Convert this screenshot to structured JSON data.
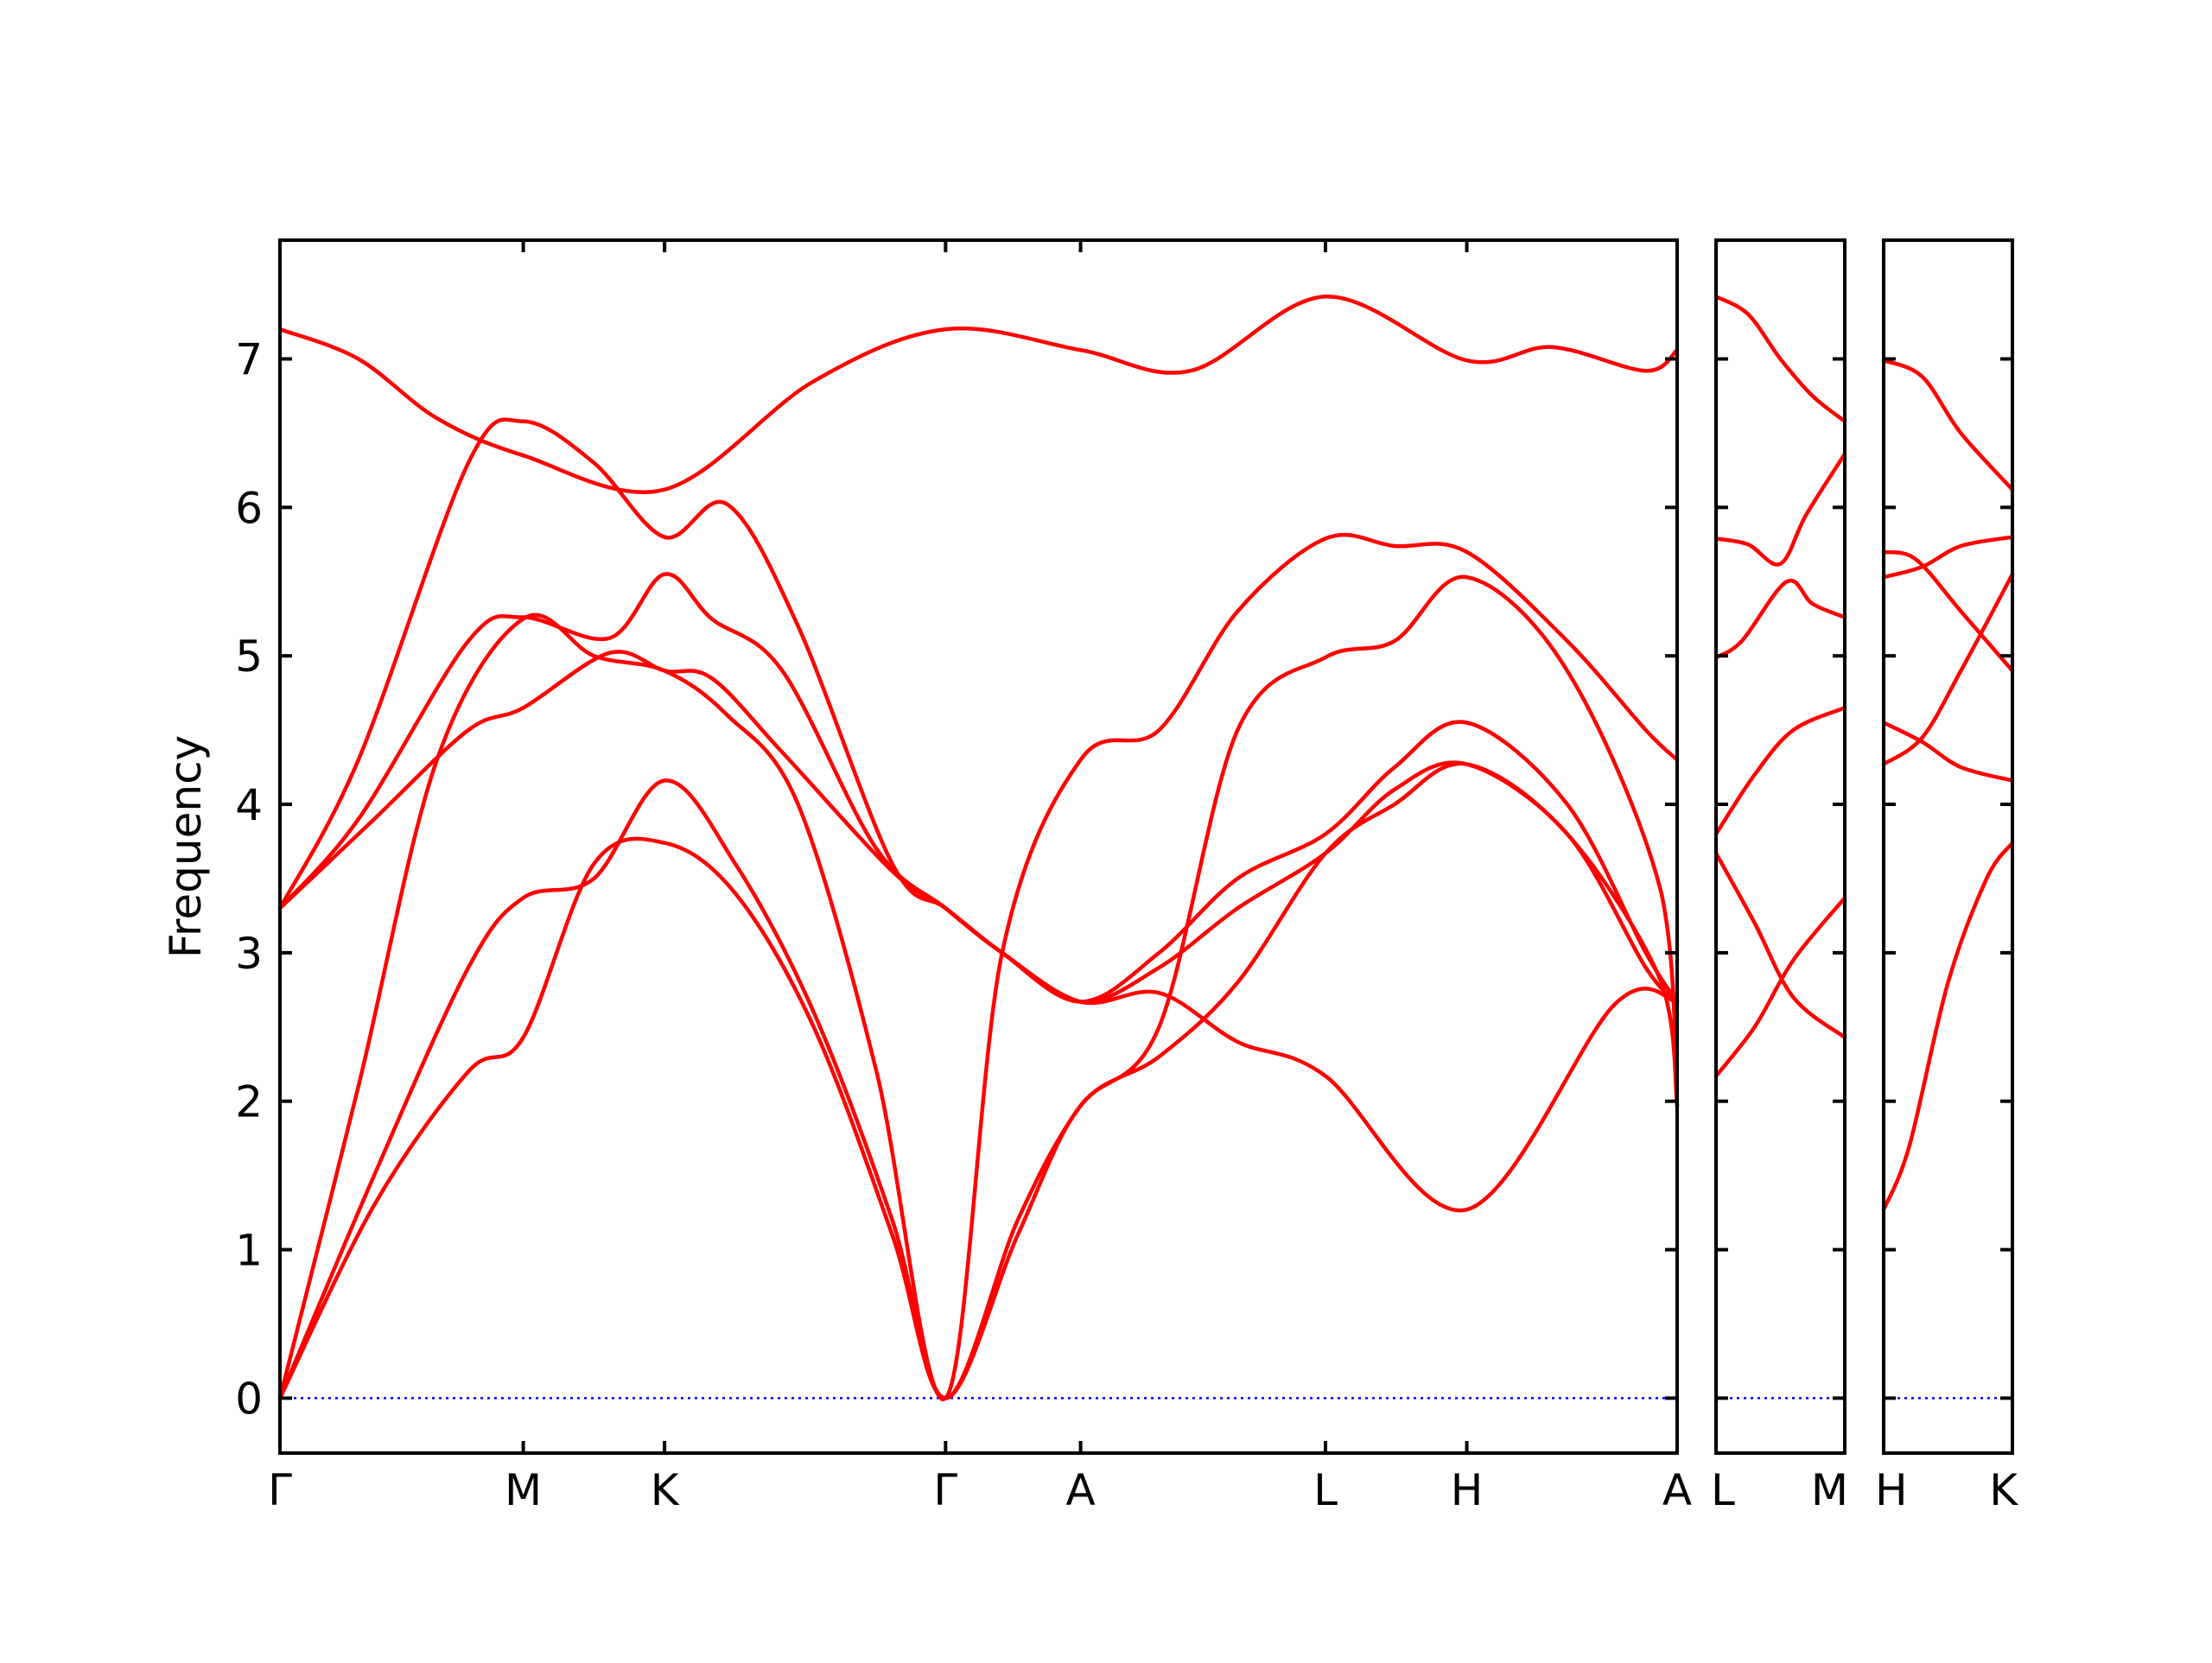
{
  "chart_data": {
    "type": "line",
    "ylabel": "Frequency",
    "xlabel": "",
    "ylim": [
      -0.37,
      7.8
    ],
    "yticks": [
      0,
      1,
      2,
      3,
      4,
      5,
      6,
      7
    ],
    "grid": false,
    "legend": "none",
    "colors": {
      "bands": "#ff0000",
      "zero_line": "#0000ff",
      "axes": "#000000"
    },
    "panels": [
      {
        "xlim": [
          0,
          8.9
        ],
        "points": [
          {
            "label": "Γ",
            "x": 0
          },
          {
            "label": "M",
            "x": 1.55
          },
          {
            "label": "K",
            "x": 2.45
          },
          {
            "label": "Γ",
            "x": 4.24
          },
          {
            "label": "A",
            "x": 5.1
          },
          {
            "label": "L",
            "x": 6.66
          },
          {
            "label": "H",
            "x": 7.56
          },
          {
            "label": "A",
            "x": 9.35
          }
        ],
        "bands": [
          {
            "x": [
              0,
              0.5,
              1.0,
              1.55,
              2.45,
              3.4,
              4.24,
              5.1,
              5.8,
              6.66,
              7.56,
              8.1,
              8.7,
              9.35
            ],
            "y": [
              7.2,
              7.0,
              6.6,
              6.35,
              6.12,
              6.85,
              7.2,
              7.06,
              6.92,
              7.42,
              6.99,
              7.08,
              6.92,
              7.06
            ]
          },
          {
            "x": [
              0,
              0.5,
              1.2,
              1.55,
              2.0,
              2.45,
              2.85,
              3.3,
              3.9,
              4.24,
              4.6,
              5.1,
              5.6,
              6.1,
              6.66,
              7.56,
              8.5,
              9.35
            ],
            "y": [
              3.3,
              4.3,
              6.3,
              6.58,
              6.3,
              5.8,
              6.02,
              5.2,
              3.6,
              3.3,
              3.0,
              2.67,
              2.73,
              2.4,
              2.17,
              1.27,
              2.65,
              2.67
            ]
          },
          {
            "x": [
              0,
              0.5,
              1.2,
              1.55,
              2.1,
              2.45,
              2.75,
              3.2,
              3.8,
              4.24,
              4.6,
              5.1,
              5.6,
              6.1,
              6.66,
              7.1,
              7.56,
              8.2,
              8.7,
              9.35
            ],
            "y": [
              3.3,
              3.9,
              5.1,
              5.26,
              5.12,
              5.55,
              5.25,
              4.9,
              3.7,
              3.3,
              3.0,
              2.67,
              3.0,
              3.5,
              3.8,
              4.25,
              4.55,
              4.0,
              3.0,
              2.67
            ]
          },
          {
            "x": [
              0,
              0.6,
              1.2,
              1.55,
              2.1,
              2.45,
              2.75,
              3.2,
              3.9,
              4.24,
              4.6,
              5.1,
              5.6,
              6.1,
              6.66,
              7.1,
              7.56,
              8.2,
              8.7,
              9.35
            ],
            "y": [
              3.3,
              3.9,
              4.5,
              4.65,
              5.02,
              4.9,
              4.85,
              4.35,
              3.55,
              3.3,
              3.0,
              2.67,
              2.9,
              3.3,
              3.67,
              4.1,
              4.27,
              3.8,
              2.9,
              2.67
            ]
          },
          {
            "x": [
              0,
              0.5,
              1.0,
              1.55,
              2.0,
              2.45,
              2.85,
              3.3,
              3.8,
              4.24,
              4.6,
              5.1,
              5.6,
              6.1,
              6.66,
              7.1,
              7.56,
              8.2,
              8.7,
              9.35
            ],
            "y": [
              0,
              2.1,
              4.3,
              5.25,
              5.0,
              4.9,
              4.6,
              4.0,
              2.2,
              0,
              3.0,
              4.3,
              4.5,
              5.3,
              5.79,
              5.74,
              5.7,
              5.1,
              4.5,
              4.3
            ]
          },
          {
            "x": [
              0,
              0.6,
              1.2,
              1.55,
              2.0,
              2.45,
              2.9,
              3.4,
              3.9,
              4.24,
              4.7,
              5.1,
              5.6,
              6.1,
              6.66,
              7.1,
              7.56,
              8.2,
              8.8,
              9.35
            ],
            "y": [
              0,
              1.5,
              2.9,
              3.37,
              3.5,
              4.16,
              3.6,
              2.6,
              1.2,
              0,
              1.2,
              1.97,
              2.5,
              4.5,
              4.99,
              5.1,
              5.53,
              4.9,
              3.4,
              1.97
            ]
          },
          {
            "x": [
              0,
              0.6,
              1.2,
              1.55,
              2.0,
              2.45,
              2.9,
              3.4,
              3.9,
              4.24,
              4.7,
              5.1,
              5.6,
              6.1,
              6.66,
              7.1,
              7.56,
              8.2,
              8.8,
              9.35
            ],
            "y": [
              0,
              1.3,
              2.2,
              2.43,
              3.6,
              3.74,
              3.4,
              2.5,
              1.1,
              0,
              1.1,
              1.97,
              2.3,
              2.8,
              3.67,
              4.0,
              4.27,
              3.8,
              2.8,
              1.97
            ]
          }
        ]
      },
      {
        "xlim": [
          0,
          1
        ],
        "points": [
          {
            "label": "L",
            "x": 0
          },
          {
            "label": "M",
            "x": 1
          }
        ],
        "bands": [
          {
            "x": [
              0,
              0.25,
              0.5,
              0.75,
              1
            ],
            "y": [
              7.42,
              7.3,
              7.0,
              6.75,
              6.58
            ]
          },
          {
            "x": [
              0,
              0.25,
              0.5,
              0.7,
              1
            ],
            "y": [
              5.79,
              5.75,
              5.62,
              5.95,
              6.36
            ]
          },
          {
            "x": [
              0,
              0.2,
              0.55,
              0.75,
              1
            ],
            "y": [
              4.99,
              5.1,
              5.5,
              5.35,
              5.26
            ]
          },
          {
            "x": [
              0,
              0.3,
              0.6,
              1
            ],
            "y": [
              3.8,
              4.2,
              4.5,
              4.65
            ]
          },
          {
            "x": [
              0,
              0.3,
              0.6,
              1
            ],
            "y": [
              3.67,
              3.2,
              2.7,
              2.43
            ]
          },
          {
            "x": [
              0,
              0.3,
              0.6,
              1
            ],
            "y": [
              2.17,
              2.5,
              2.95,
              3.37
            ]
          }
        ]
      },
      {
        "xlim": [
          0,
          1
        ],
        "points": [
          {
            "label": "H",
            "x": 0
          },
          {
            "label": "K",
            "x": 1
          }
        ],
        "bands": [
          {
            "x": [
              0,
              0.3,
              0.6,
              1
            ],
            "y": [
              6.99,
              6.88,
              6.5,
              6.12
            ]
          },
          {
            "x": [
              0,
              0.3,
              0.6,
              1
            ],
            "y": [
              5.53,
              5.6,
              5.74,
              5.8
            ]
          },
          {
            "x": [
              0,
              0.25,
              0.6,
              1
            ],
            "y": [
              5.7,
              5.65,
              5.3,
              4.9
            ]
          },
          {
            "x": [
              0,
              0.3,
              0.6,
              1
            ],
            "y": [
              4.55,
              4.42,
              4.25,
              4.16
            ]
          },
          {
            "x": [
              0,
              0.3,
              0.6,
              1
            ],
            "y": [
              4.27,
              4.45,
              4.9,
              5.55
            ]
          },
          {
            "x": [
              0,
              0.2,
              0.5,
              0.8,
              1
            ],
            "y": [
              1.27,
              1.7,
              2.8,
              3.5,
              3.74
            ]
          }
        ]
      }
    ]
  }
}
